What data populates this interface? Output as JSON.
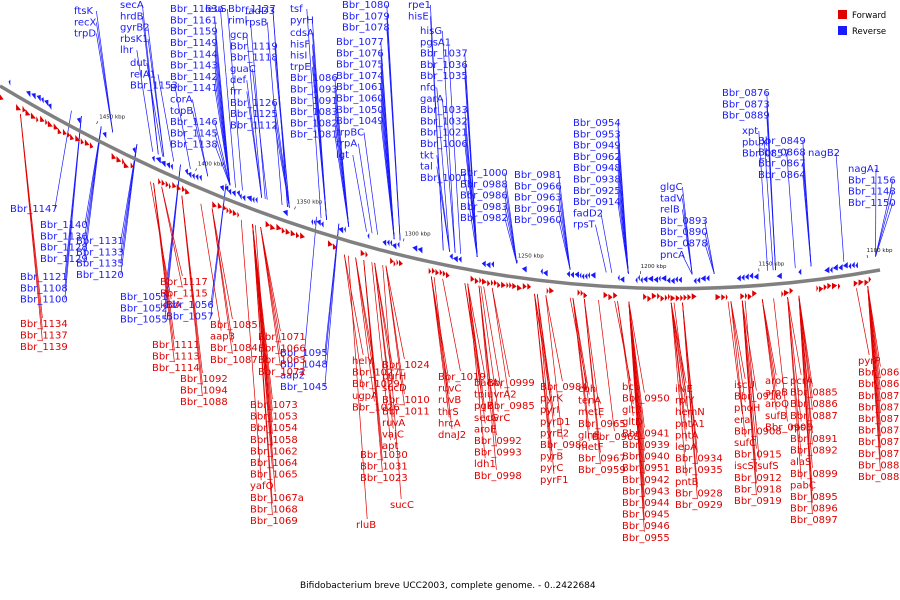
{
  "title": "Bifidobacterium breve UCC2003, complete genome. - 0..2422684",
  "colors": {
    "forward": "#e00000",
    "reverse": "#1a1aff",
    "backbone": "#808080"
  },
  "legend": {
    "forward_label": "Forward",
    "reverse_label": "Reverse"
  },
  "ticks": [
    "1450 kbp",
    "1400 kbp",
    "1350 kbp",
    "1300 kbp",
    "1250 kbp",
    "1200 kbp",
    "1150 kbp",
    "1100 kbp"
  ],
  "reverse_labels": [
    "ftsK",
    "recX",
    "trpD",
    "secA",
    "hrdB",
    "gyrB2",
    "rbsK1",
    "lhr",
    "dut",
    "relA1",
    "Bbr_1153",
    "Bbr_1163a",
    "Bbr_1161",
    "Bbr_1159",
    "Bbr_1149",
    "Bbr_1144",
    "Bbr_1143",
    "Bbr_1142",
    "Bbr_1141",
    "corA",
    "topB",
    "Bbr_1146",
    "Bbr_1145",
    "Bbr_1138",
    "leuS",
    "Bbr_1127",
    "riml",
    "gcp",
    "Bbr_1119",
    "Bbr_1118",
    "guaC",
    "def",
    "frr",
    "Bbr_1126",
    "Bbr_1125",
    "Bbr_1112",
    "fadD3",
    "rpsB",
    "tsf",
    "pyrH",
    "cdsA",
    "hisF",
    "hisI",
    "trpE",
    "Bbr_1086",
    "Bbr_1093",
    "Bbr_1091",
    "Bbr_1083",
    "Bbr_1082",
    "Bbr_1081",
    "Bbr_1080",
    "Bbr_1079",
    "Bbr_1078",
    "Bbr_1077",
    "Bbr_1076",
    "Bbr_1075",
    "Bbr_1074",
    "Bbr_1061",
    "Bbr_1060",
    "Bbr_1050",
    "Bbr_1049",
    "trpBC",
    "trpA",
    "lgt",
    "rpe1",
    "hisE",
    "hisG",
    "pgsA1",
    "Bbr_1037",
    "Bbr_1036",
    "Bbr_1035",
    "nfo",
    "garA",
    "Bbr_1033",
    "Bbr_1032",
    "Bbr_1021",
    "Bbr_1006",
    "tkt",
    "tal",
    "Bbr_1001",
    "Bbr_1000",
    "Bbr_0988",
    "Bbr_0986",
    "Bbr_0983",
    "Bbr_0982",
    "Bbr_0981",
    "Bbr_0966",
    "Bbr_0963",
    "Bbr_0961",
    "Bbr_0960",
    "Bbr_0954",
    "Bbr_0953",
    "Bbr_0949",
    "Bbr_0962",
    "Bbr_0948",
    "Bbr_0938",
    "Bbr_0925",
    "Bbr_0914",
    "fadD2",
    "rpsT",
    "glgC",
    "tadV",
    "relB",
    "Bbr_0893",
    "Bbr_0890",
    "Bbr_0878",
    "pncA",
    "Bbr_0876",
    "Bbr_0873",
    "Bbr_0889",
    "xpt",
    "pbuX",
    "Bbr_0857",
    "Bbr_0849",
    "Bbr_0868",
    "Bbr_0867",
    "Bbr_0864",
    "nagB2",
    "nagA1",
    "Bbr_1156",
    "Bbr_1148",
    "Bbr_1150",
    "Bbr_1147",
    "Bbr_1140",
    "Bbr_1136",
    "Bbr_1128",
    "Bbr_1129",
    "Bbr_1131",
    "Bbr_1133",
    "Bbr_1135",
    "Bbr_1120",
    "Bbr_1121",
    "Bbr_1108",
    "Bbr_1100",
    "Bbr_1051",
    "Bbr_1052",
    "Bbr_1055",
    "Bbr_1056",
    "Bbr_1057",
    "Bbr_1095",
    "Bbr_1048",
    "aap2",
    "Bbr_1045"
  ],
  "forward_labels": [
    "Bbr_1134",
    "Bbr_1137",
    "Bbr_1139",
    "Bbr_1117",
    "Bbr_1115",
    "icdA",
    "Bbr_1111",
    "Bbr_1113",
    "Bbr_1114",
    "Bbr_1085",
    "aap3",
    "Bbr_1084",
    "Bbr_1087",
    "Bbr_1092",
    "Bbr_1094",
    "Bbr_1088",
    "Bbr_1071",
    "Bbr_1066",
    "Bbr_1063",
    "Bbr_1072",
    "Bbr_1073",
    "Bbr_1053",
    "Bbr_1054",
    "Bbr_1058",
    "Bbr_1062",
    "Bbr_1064",
    "Bbr_1065",
    "yafQ",
    "Bbr_1067a",
    "Bbr_1068",
    "Bbr_1069",
    "helY",
    "Bbr_1027",
    "Bbr_1029",
    "ugpA",
    "Bbr_1026",
    "Bbr_1030",
    "Bbr_1031",
    "Bbr_1023",
    "rluB",
    "Bbr_1024",
    "purH",
    "sucD",
    "Bbr_1010",
    "Bbr_1011",
    "ruvA",
    "vajC",
    "apt",
    "sucC",
    "Bbr_1019",
    "ruvC",
    "ruvB",
    "thrS",
    "hrcA",
    "dnaJ2",
    "bacA",
    "tpi",
    "pgk",
    "secG",
    "aroE",
    "Bbr_0992",
    "Bbr_0993",
    "ldh1",
    "Bbr_0998",
    "Bbr_0999",
    "uvrA2",
    "Bbr_0985",
    "uvrC",
    "Bbr_0984",
    "pyrK",
    "pyrI",
    "pyrD1",
    "pyrE2",
    "Bbr_0980",
    "pyrB",
    "pyrC",
    "pyrF1",
    "cbh",
    "tenA",
    "metE",
    "Bbr_0965",
    "glnE",
    "metF",
    "Bbr_0967",
    "Bbr_0959",
    "Bbr_0968",
    "bcp",
    "Bbr_0950",
    "gltB",
    "gltD",
    "Bbr_0941",
    "Bbr_0939",
    "Bbr_0940",
    "Bbr_0951",
    "Bbr_0942",
    "Bbr_0943",
    "Bbr_0944",
    "Bbr_0945",
    "Bbr_0946",
    "Bbr_0955",
    "ilvE",
    "rplY",
    "hemN",
    "pntA1",
    "pntA",
    "lepA",
    "Bbr_0934",
    "Bbr_0935",
    "pntB",
    "Bbr_0928",
    "Bbr_0929",
    "iscU",
    "Bbr_0916",
    "phoH",
    "era",
    "Bbr_0908",
    "sufC",
    "Bbr_0915",
    "iscS/sufS",
    "Bbr_0912",
    "Bbr_0918",
    "Bbr_0919",
    "aroC",
    "aroB",
    "aroQ",
    "sufB",
    "Bbr_0906",
    "pcrA",
    "Bbr_0885",
    "Bbr_0886",
    "Bbr_0887",
    "rpsD",
    "Bbr_0891",
    "Bbr_0892",
    "alaS",
    "Bbr_0899",
    "pabC",
    "Bbr_0895",
    "Bbr_0896",
    "Bbr_0897",
    "pyrP",
    "Bbr_0865",
    "Bbr_0866",
    "Bbr_0870",
    "Bbr_0871",
    "Bbr_0872",
    "Bbr_0874",
    "Bbr_0875",
    "Bbr_0879",
    "Bbr_0880",
    "Bbr_0881"
  ]
}
